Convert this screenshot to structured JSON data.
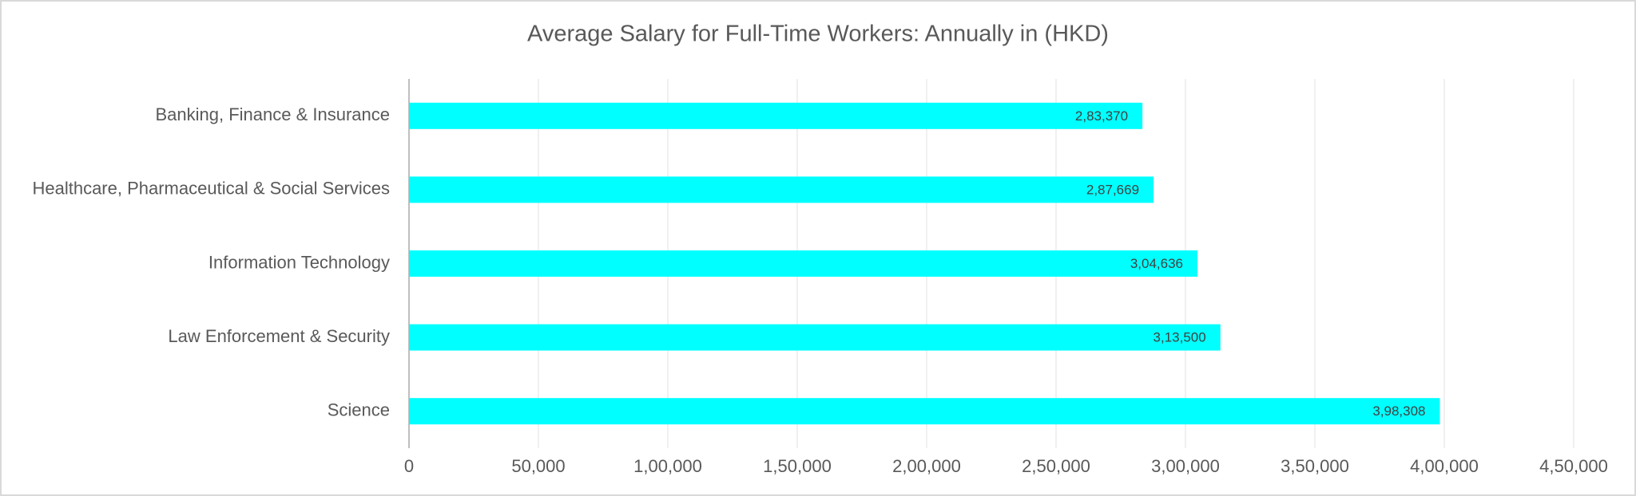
{
  "chart_data": {
    "type": "bar",
    "orientation": "horizontal",
    "title": "Average Salary for Full-Time Workers: Annually in (HKD)",
    "categories": [
      "Banking, Finance & Insurance",
      "Healthcare, Pharmaceutical & Social Services",
      "Information Technology",
      "Law Enforcement & Security",
      "Science"
    ],
    "values": [
      283370,
      287669,
      304636,
      313500,
      398308
    ],
    "value_labels": [
      "2,83,370",
      "2,87,669",
      "3,04,636",
      "3,13,500",
      "3,98,308"
    ],
    "color": "#00ffff",
    "xlim": [
      0,
      450000
    ],
    "xticks": [
      0,
      {
        "value": 50000,
        "label": "50,000"
      },
      {
        "value": 100000,
        "label": "1,00,000"
      },
      {
        "value": 150000,
        "label": "1,50,000"
      },
      {
        "value": 200000,
        "label": "2,00,000"
      },
      {
        "value": 250000,
        "label": "2,50,000"
      },
      {
        "value": 300000,
        "label": "3,00,000"
      },
      {
        "value": 350000,
        "label": "3,50,000"
      },
      {
        "value": 400000,
        "label": "4,00,000"
      },
      {
        "value": 450000,
        "label": "4,50,000"
      }
    ],
    "grid": true
  }
}
